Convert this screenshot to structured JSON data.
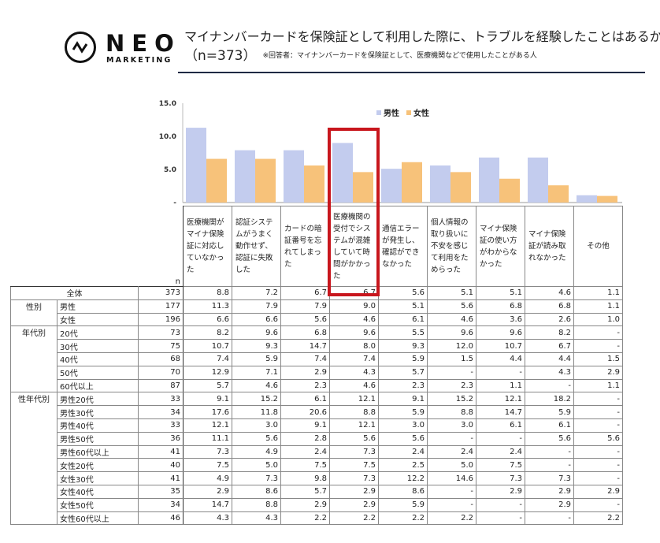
{
  "logo": {
    "text": "NEO",
    "subtext": "MARKETING"
  },
  "header": {
    "title": "マイナンバーカードを保険証として利用した際に、トラブルを経験したことはあるか",
    "n_label": "（n=373）",
    "note": "※回答者：マイナンバーカードを保険証として、医療機関などで使用したことがある人"
  },
  "chart_data": {
    "type": "bar",
    "categories": [
      "医療機関がマイナ保険証に対応していなかった",
      "認証システムがうまく動作せず、認証に失敗した",
      "カードの暗証番号を忘れてしまった",
      "医療機関の受付でシステムが混雑していて時間がかかった",
      "通信エラーが発生し、確認ができなかった",
      "個人情報の取り扱いに不安を感じて利用をためらった",
      "マイナ保険証の使い方がわからなかった",
      "マイナ保険証が読み取れなかった",
      "その他"
    ],
    "series": [
      {
        "name": "男性",
        "values": [
          11.3,
          7.9,
          7.9,
          9.0,
          5.1,
          5.6,
          6.8,
          6.8,
          1.1
        ]
      },
      {
        "name": "女性",
        "values": [
          6.6,
          6.6,
          5.6,
          4.6,
          6.1,
          4.6,
          3.6,
          2.6,
          1.0
        ]
      }
    ],
    "ylim": [
      0,
      15
    ],
    "yticks": [
      "-",
      "5.0",
      "10.0",
      "15.0"
    ],
    "legend": "top-center",
    "colors": {
      "男性": "#c3ccee",
      "女性": "#f7c27a",
      "highlight": "#c8161d"
    },
    "highlighted_category_index": 3
  },
  "table": {
    "n_header": "n",
    "rows": [
      {
        "group": "",
        "label": "全体",
        "n": "373",
        "v": [
          "8.8",
          "7.2",
          "6.7",
          "6.7",
          "5.6",
          "5.1",
          "5.1",
          "4.6",
          "1.1"
        ]
      },
      {
        "group": "性別",
        "label": "男性",
        "n": "177",
        "v": [
          "11.3",
          "7.9",
          "7.9",
          "9.0",
          "5.1",
          "5.6",
          "6.8",
          "6.8",
          "1.1"
        ]
      },
      {
        "group": "",
        "label": "女性",
        "n": "196",
        "v": [
          "6.6",
          "6.6",
          "5.6",
          "4.6",
          "6.1",
          "4.6",
          "3.6",
          "2.6",
          "1.0"
        ]
      },
      {
        "group": "年代別",
        "label": "20代",
        "n": "73",
        "v": [
          "8.2",
          "9.6",
          "6.8",
          "9.6",
          "5.5",
          "9.6",
          "9.6",
          "8.2",
          "-"
        ]
      },
      {
        "group": "",
        "label": "30代",
        "n": "75",
        "v": [
          "10.7",
          "9.3",
          "14.7",
          "8.0",
          "9.3",
          "12.0",
          "10.7",
          "6.7",
          "-"
        ]
      },
      {
        "group": "",
        "label": "40代",
        "n": "68",
        "v": [
          "7.4",
          "5.9",
          "7.4",
          "7.4",
          "5.9",
          "1.5",
          "4.4",
          "4.4",
          "1.5"
        ]
      },
      {
        "group": "",
        "label": "50代",
        "n": "70",
        "v": [
          "12.9",
          "7.1",
          "2.9",
          "4.3",
          "5.7",
          "-",
          "-",
          "4.3",
          "2.9"
        ]
      },
      {
        "group": "",
        "label": "60代以上",
        "n": "87",
        "v": [
          "5.7",
          "4.6",
          "2.3",
          "4.6",
          "2.3",
          "2.3",
          "1.1",
          "-",
          "1.1"
        ]
      },
      {
        "group": "性年代別",
        "label": "男性20代",
        "n": "33",
        "v": [
          "9.1",
          "15.2",
          "6.1",
          "12.1",
          "9.1",
          "15.2",
          "12.1",
          "18.2",
          "-"
        ]
      },
      {
        "group": "",
        "label": "男性30代",
        "n": "34",
        "v": [
          "17.6",
          "11.8",
          "20.6",
          "8.8",
          "5.9",
          "8.8",
          "14.7",
          "5.9",
          "-"
        ]
      },
      {
        "group": "",
        "label": "男性40代",
        "n": "33",
        "v": [
          "12.1",
          "3.0",
          "9.1",
          "12.1",
          "3.0",
          "3.0",
          "6.1",
          "6.1",
          "-"
        ]
      },
      {
        "group": "",
        "label": "男性50代",
        "n": "36",
        "v": [
          "11.1",
          "5.6",
          "2.8",
          "5.6",
          "5.6",
          "-",
          "-",
          "5.6",
          "5.6"
        ]
      },
      {
        "group": "",
        "label": "男性60代以上",
        "n": "41",
        "v": [
          "7.3",
          "4.9",
          "2.4",
          "7.3",
          "2.4",
          "2.4",
          "2.4",
          "-",
          "-"
        ]
      },
      {
        "group": "",
        "label": "女性20代",
        "n": "40",
        "v": [
          "7.5",
          "5.0",
          "7.5",
          "7.5",
          "2.5",
          "5.0",
          "7.5",
          "-",
          "-"
        ]
      },
      {
        "group": "",
        "label": "女性30代",
        "n": "41",
        "v": [
          "4.9",
          "7.3",
          "9.8",
          "7.3",
          "12.2",
          "14.6",
          "7.3",
          "7.3",
          "-"
        ]
      },
      {
        "group": "",
        "label": "女性40代",
        "n": "35",
        "v": [
          "2.9",
          "8.6",
          "5.7",
          "2.9",
          "8.6",
          "-",
          "2.9",
          "2.9",
          "2.9"
        ]
      },
      {
        "group": "",
        "label": "女性50代",
        "n": "34",
        "v": [
          "14.7",
          "8.8",
          "2.9",
          "2.9",
          "5.9",
          "-",
          "-",
          "2.9",
          "-"
        ]
      },
      {
        "group": "",
        "label": "女性60代以上",
        "n": "46",
        "v": [
          "4.3",
          "4.3",
          "2.2",
          "2.2",
          "2.2",
          "2.2",
          "-",
          "-",
          "2.2"
        ]
      }
    ]
  }
}
